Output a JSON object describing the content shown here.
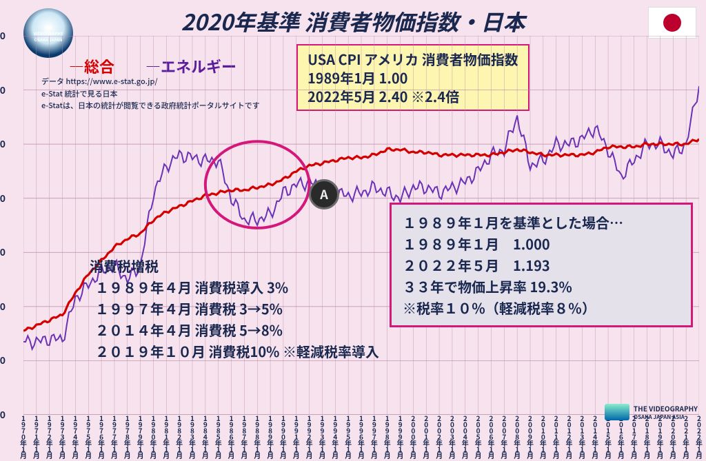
{
  "title": "2020年基準 消費者物価指数・日本",
  "legend": {
    "series1": "―総合",
    "series2": "―エネルギー"
  },
  "data_source": {
    "l1": "データ  https://www.e-stat.go.jp/",
    "l2": "e-Stat 統計で見る日本",
    "l3": "e-Statは、日本の統計が閲覧できる政府統計ポータルサイトです"
  },
  "usa_box": {
    "l1": "USA CPI アメリカ 消費者物価指数",
    "l2": "1989年1月 1.00",
    "l3": "2022年5月 2.40 ※2.4倍"
  },
  "tax_box": {
    "t": "消費税増税",
    "l1": "１９８９年４月 消費税導入 3%",
    "l2": "１９９７年４月 消費税 3→5%",
    "l3": "２０１４年４月 消費税 5→8%",
    "l4": "２０１９年１０月 消費税10% ※軽減税率導入"
  },
  "base_box": {
    "l1": "１９８９年１月を基準とした場合…",
    "l2": "１９８９年１月　1.000",
    "l3": "２０２２年５月　1.193",
    "l4": "３３年で物価上昇率 19.3%",
    "l5": "※税率１０％（軽減税率８％）"
  },
  "logo_tl": "THE VIDEOGRAPHY OSAKA JAPAN",
  "logo_br": {
    "l1": "THE VIDEOGRAPHY",
    "l2": "OSAKA JAPAN ASIA"
  },
  "chart": {
    "type": "line",
    "y": {
      "min": 0,
      "max": 140,
      "step": 20
    },
    "x_labels": [
      "1970年1月",
      "1971年1月",
      "1972年1月",
      "1973年1月",
      "1974年1月",
      "1975年1月",
      "1976年1月",
      "1977年1月",
      "1978年1月",
      "1979年1月",
      "1980年1月",
      "1981年1月",
      "1982年1月",
      "1983年1月",
      "1984年1月",
      "1985年1月",
      "1986年1月",
      "1987年1月",
      "1988年1月",
      "1989年1月",
      "1990年1月",
      "1991年1月",
      "1992年1月",
      "1993年1月",
      "1994年1月",
      "1995年1月",
      "1996年1月",
      "1997年1月",
      "1998年1月",
      "1999年1月",
      "2000年1月",
      "2001年1月",
      "2002年1月",
      "2003年1月",
      "2004年1月",
      "2005年1月",
      "2006年1月",
      "2007年1月",
      "2008年1月",
      "2009年1月",
      "2010年1月",
      "2011年1月",
      "2012年1月",
      "2013年1月",
      "2014年1月",
      "2015年1月",
      "2016年1月",
      "2017年1月",
      "2018年1月",
      "2019年1月",
      "2020年1月",
      "2021年1月",
      "2022年1月"
    ],
    "colors": {
      "sogo": "#d40000",
      "energy": "#6a32b4",
      "grid": "#b88aa8",
      "bg": "#f7e3ee",
      "highlight_circle": "#d4187a"
    },
    "line_width": {
      "sogo": 3.2,
      "energy": 2.0
    },
    "circle": {
      "cx_year": 1988,
      "cy_val": 85,
      "r_years": 4,
      "r_val": 16
    },
    "series": {
      "sogo": [
        31,
        33,
        35,
        37,
        45,
        52,
        57,
        62,
        65,
        67,
        72,
        75,
        77,
        79,
        81,
        82,
        83,
        83,
        84,
        85,
        87,
        90,
        92,
        93,
        94,
        95,
        95,
        96,
        98,
        98,
        97,
        97,
        96,
        96,
        96,
        96,
        96,
        97,
        98,
        97,
        96,
        96,
        96,
        96,
        97,
        99,
        99,
        99,
        100,
        100,
        100,
        100,
        102
      ],
      "energy": [
        27,
        27,
        28,
        28,
        43,
        48,
        53,
        55,
        50,
        55,
        82,
        92,
        96,
        95,
        94,
        94,
        80,
        72,
        72,
        74,
        82,
        85,
        86,
        84,
        82,
        81,
        82,
        84,
        82,
        80,
        84,
        84,
        82,
        84,
        86,
        90,
        96,
        98,
        110,
        92,
        94,
        100,
        100,
        102,
        106,
        98,
        88,
        94,
        100,
        100,
        96,
        100,
        122
      ]
    }
  }
}
